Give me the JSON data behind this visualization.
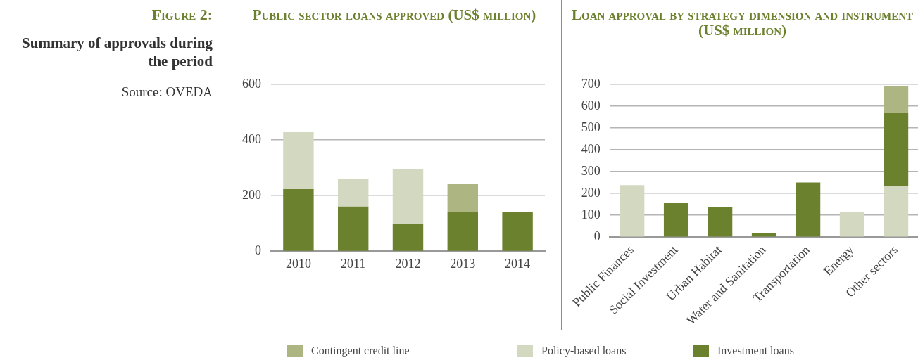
{
  "chart_data": [
    {
      "type": "other",
      "title": "Figure 2:",
      "subtitle": "Summary of approvals during the period",
      "annotations": [
        "Source: OVEDA"
      ]
    },
    {
      "type": "bar",
      "title": "Public sector loans approved (US$ million)",
      "categories": [
        "2010",
        "2011",
        "2012",
        "2013",
        "2014"
      ],
      "stacked": true,
      "series": [
        {
          "name": "Investment loans",
          "color": "#6b812e",
          "values": [
            223,
            161,
            97,
            140,
            140
          ]
        },
        {
          "name": "Policy-based loans",
          "color": "#d3d8c0",
          "values": [
            205,
            98,
            199,
            null,
            null
          ]
        },
        {
          "name": "Contingent credit line",
          "color": "#adb583",
          "values": [
            null,
            null,
            null,
            101,
            null
          ]
        }
      ],
      "ylim": [
        0,
        600
      ],
      "yticks": [
        0,
        200,
        400,
        600
      ],
      "grid": "y",
      "legend": "bottom"
    },
    {
      "type": "bar",
      "title": "Loan approval by strategy dimension and instrument (US$ million)",
      "categories": [
        "Public Finances",
        "Social Investment",
        "Urban Habitat",
        "Water and Sanitation",
        "Transportation",
        "Energy",
        "Other sectors"
      ],
      "stacked": true,
      "series": [
        {
          "color": "#d3d8c0",
          "values": [
            238,
            null,
            null,
            null,
            null,
            115,
            235
          ]
        },
        {
          "color": "#6b812e",
          "values": [
            null,
            157,
            139,
            19,
            250,
            null,
            334
          ]
        },
        {
          "color": "#adb583",
          "values": [
            null,
            null,
            null,
            null,
            null,
            null,
            123
          ]
        }
      ],
      "ylim": [
        0,
        700
      ],
      "yticks": [
        0,
        100,
        200,
        300,
        400,
        500,
        600,
        700
      ],
      "grid": "y"
    }
  ]
}
